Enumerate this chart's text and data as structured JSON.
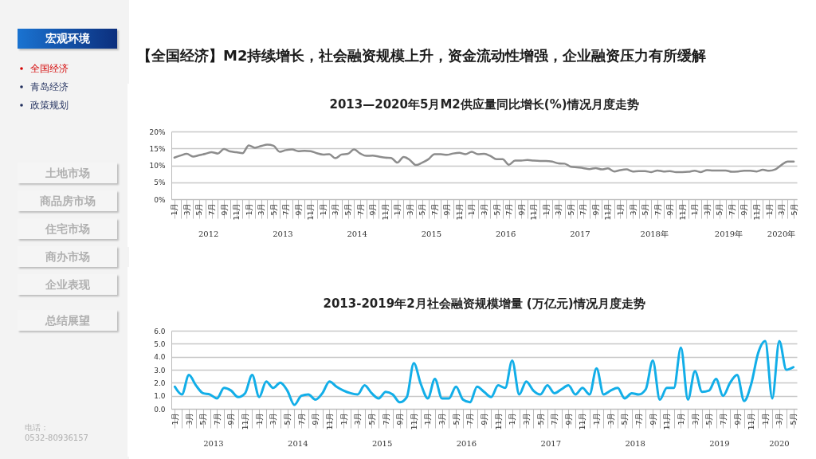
{
  "chart_data": [
    {
      "type": "other",
      "annotations": [
        "宏观环境",
        "全国经济",
        "青岛经济",
        "政策规划",
        "土地市场",
        "商品房市场",
        "住宅市场",
        "商办市场",
        "企业表现",
        "总结展望",
        "电话：",
        "0532-80936157"
      ]
    },
    {
      "type": "other",
      "title": "【全国经济】M2持续增长，社会融资规模上升，资金流动性增强，企业融资压力有所缓解"
    },
    {
      "type": "line",
      "title": "2013—2020年5月M2供应量同比增长(%)情况月度走势",
      "categories": [
        "1月",
        null,
        "3月",
        null,
        "5月",
        null,
        "7月",
        null,
        "9月",
        null,
        "11月",
        null,
        "1月",
        null,
        "3月",
        null,
        "5月",
        null,
        "7月",
        null,
        "9月",
        null,
        "11月",
        null,
        "1月",
        null,
        "3月",
        null,
        "5月",
        null,
        "7月",
        null,
        "9月",
        null,
        "11月",
        null,
        "1月",
        null,
        "3月",
        null,
        "5月",
        null,
        "7月",
        null,
        "9月",
        null,
        "11月",
        null,
        "1月",
        null,
        "3月",
        null,
        "5月",
        null,
        "7月",
        null,
        "9月",
        null,
        "11月",
        null,
        "1月",
        null,
        "3月",
        null,
        "5月",
        null,
        "7月",
        null,
        "9月",
        null,
        "11月",
        null,
        "1月",
        null,
        "3月",
        null,
        "5月",
        null,
        "7月",
        null,
        "9月",
        null,
        "11月",
        null,
        "1月",
        null,
        "3月",
        null,
        "5月",
        null,
        "7月",
        null,
        "9月",
        null,
        "11月",
        null,
        "1月",
        null,
        "3月",
        null,
        "5月"
      ],
      "series": [
        {
          "color": "#8c8c8c",
          "values": [
            12.3,
            12.9,
            13.4,
            12.6,
            13.0,
            13.4,
            13.9,
            13.5,
            14.8,
            14.1,
            13.9,
            13.6,
            15.9,
            15.2,
            15.7,
            16.1,
            15.8,
            14.0,
            14.5,
            14.7,
            14.2,
            14.3,
            14.2,
            13.6,
            13.2,
            13.3,
            12.1,
            13.2,
            13.4,
            14.7,
            13.5,
            12.8,
            12.9,
            12.6,
            12.3,
            12.2,
            10.8,
            12.5,
            11.6,
            10.1,
            10.8,
            11.8,
            13.3,
            13.3,
            13.1,
            13.5,
            13.7,
            13.3,
            14.0,
            13.3,
            13.4,
            12.8,
            11.8,
            11.8,
            10.2,
            11.4,
            11.4,
            11.6,
            11.4,
            11.3,
            11.3,
            11.1,
            10.6,
            10.5,
            9.6,
            9.4,
            9.2,
            8.9,
            9.2,
            8.8,
            9.1,
            8.2,
            8.6,
            8.8,
            8.2,
            8.3,
            8.3,
            8.0,
            8.5,
            8.2,
            8.3,
            8.0,
            8.0,
            8.1,
            8.4,
            8.0,
            8.6,
            8.5,
            8.5,
            8.5,
            8.1,
            8.2,
            8.4,
            8.4,
            8.2,
            8.7,
            8.4,
            8.8,
            10.1,
            11.1,
            11.1
          ]
        }
      ],
      "ylim": [
        0,
        20
      ],
      "yticks": [
        {
          "value": 0,
          "label": "0%"
        },
        {
          "value": 5,
          "label": "5%"
        },
        {
          "value": 10,
          "label": "10%"
        },
        {
          "value": 15,
          "label": "15%"
        },
        {
          "value": 20,
          "label": "20%"
        }
      ],
      "grid": "y",
      "marker": "none",
      "line_style": "solid",
      "annotations": [
        "2012",
        "2013",
        "2014",
        "2015",
        "2016",
        "2017",
        "2018年",
        "2019年",
        "2020年"
      ]
    },
    {
      "type": "line",
      "title": "2013-2019年2月社会融资规模增量 (万亿元)情况月度走势",
      "categories": [
        "1月",
        null,
        "3月",
        null,
        "5月",
        null,
        "7月",
        null,
        "9月",
        null,
        "11月",
        null,
        "1月",
        null,
        "3月",
        null,
        "5月",
        null,
        "7月",
        null,
        "9月",
        null,
        "11月",
        null,
        "1月",
        null,
        "3月",
        null,
        "5月",
        null,
        "7月",
        null,
        "9月",
        null,
        "11月",
        null,
        "1月",
        null,
        "3月",
        null,
        "5月",
        null,
        "7月",
        null,
        "9月",
        null,
        "11月",
        null,
        "1月",
        null,
        "3月",
        null,
        "5月",
        null,
        "7月",
        null,
        "9月",
        null,
        "11月",
        null,
        "1月",
        null,
        "3月",
        null,
        "5月",
        null,
        "7月",
        null,
        "9月",
        null,
        "11月",
        null,
        "1月",
        null,
        "3月",
        null,
        "5月",
        null,
        "7月",
        null,
        "9月",
        null,
        "11月",
        null,
        "1月",
        null,
        "3月",
        null,
        "5月"
      ],
      "series": [
        {
          "color": "#12aee8",
          "values": [
            1.7,
            1.1,
            2.6,
            1.8,
            1.2,
            1.1,
            0.8,
            1.6,
            1.4,
            0.9,
            1.2,
            2.6,
            0.9,
            2.1,
            1.6,
            2.0,
            1.4,
            0.3,
            1.0,
            1.1,
            0.7,
            1.2,
            2.1,
            1.7,
            1.4,
            1.2,
            1.1,
            1.8,
            1.2,
            0.8,
            1.3,
            1.1,
            0.5,
            0.9,
            3.5,
            1.9,
            0.8,
            2.3,
            0.8,
            0.8,
            1.7,
            0.7,
            0.5,
            1.7,
            1.3,
            0.9,
            1.8,
            1.6,
            3.7,
            1.1,
            2.1,
            1.4,
            1.1,
            1.8,
            1.2,
            1.5,
            1.8,
            1.1,
            1.6,
            1.1,
            3.1,
            1.1,
            1.4,
            1.6,
            0.8,
            1.2,
            1.1,
            1.5,
            3.7,
            0.7,
            1.6,
            1.6,
            4.7,
            0.7,
            2.9,
            1.3,
            1.4,
            2.3,
            1.0,
            2.0,
            2.6,
            0.6,
            1.9,
            4.3,
            5.2,
            0.8,
            5.2,
            3.0,
            3.2
          ]
        }
      ],
      "ylim": [
        0,
        6
      ],
      "yticks": [
        {
          "value": 0,
          "label": "0.0"
        },
        {
          "value": 1,
          "label": "1.0"
        },
        {
          "value": 2,
          "label": "2.0"
        },
        {
          "value": 3,
          "label": "3.0"
        },
        {
          "value": 4,
          "label": "4.0"
        },
        {
          "value": 5,
          "label": "5.0"
        },
        {
          "value": 6,
          "label": "6.0"
        }
      ],
      "grid": "y",
      "marker": "none",
      "line_style": "solid",
      "annotations": [
        "2013",
        "2014",
        "2015",
        "2016",
        "2017",
        "2018",
        "2019",
        "2020"
      ]
    }
  ]
}
